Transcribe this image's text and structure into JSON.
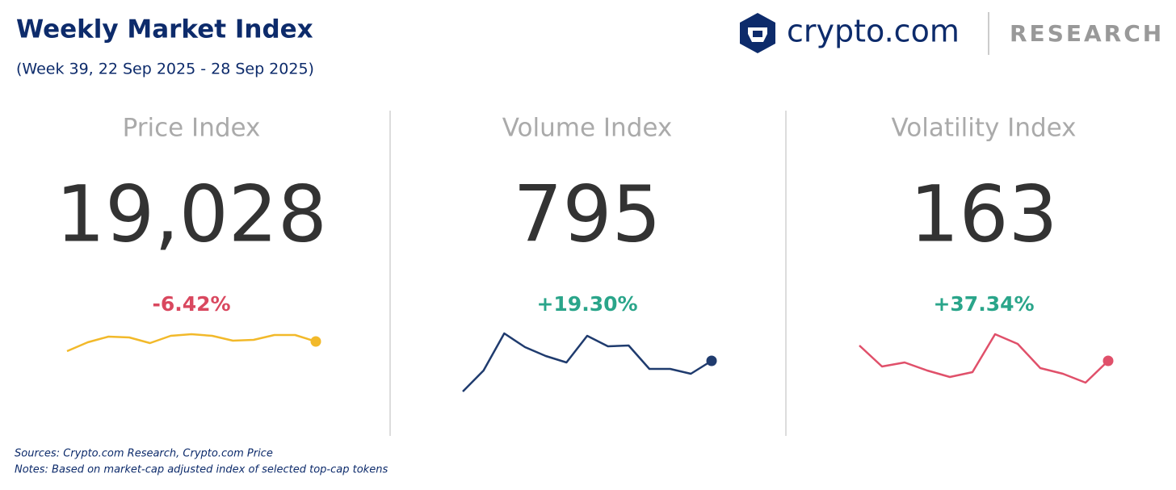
{
  "header": {
    "title": "Weekly Market Index",
    "subtitle": "(Week 39, 22 Sep 2025 - 28 Sep 2025)",
    "brand": "crypto.com",
    "section": "RESEARCH"
  },
  "cards": [
    {
      "label": "Price Index",
      "value": "19,028",
      "change": "-6.42%",
      "change_color": "#d9485f",
      "sparkline": {
        "type": "line",
        "color": "#f2b92a",
        "ylim": [
          0,
          85
        ],
        "values": [
          55,
          66,
          73,
          72,
          65,
          74,
          76,
          74,
          68,
          69,
          75,
          75,
          67
        ]
      }
    },
    {
      "label": "Volume Index",
      "value": "795",
      "change": "+19.30%",
      "change_color": "#2aa58a",
      "sparkline": {
        "type": "line",
        "color": "#1f3b6e",
        "ylim": [
          0,
          85
        ],
        "values": [
          5,
          31,
          77,
          60,
          49,
          41,
          74,
          61,
          62,
          33,
          33,
          27,
          43
        ]
      }
    },
    {
      "label": "Volatility Index",
      "value": "163",
      "change": "+37.34%",
      "change_color": "#2aa58a",
      "sparkline": {
        "type": "line",
        "color": "#e0506a",
        "ylim": [
          0,
          85
        ],
        "values": [
          62,
          36,
          41,
          31,
          23,
          29,
          76,
          64,
          34,
          27,
          16,
          43
        ]
      }
    }
  ],
  "footer": {
    "sources": "Sources: Crypto.com Research,  Crypto.com Price",
    "notes": "Notes: Based on market-cap adjusted index of selected top-cap tokens"
  }
}
